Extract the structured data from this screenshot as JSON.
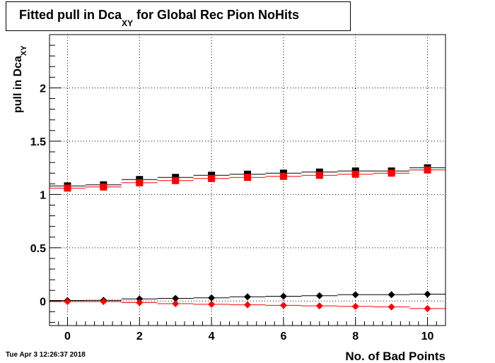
{
  "title": {
    "main": "Fitted pull in Dca",
    "subscript": "XY",
    "rest": " for Global Rec Pion NoHits"
  },
  "timestamp": "Tue Apr  3 12:26:37 2018",
  "chart_data": {
    "type": "scatter",
    "xlabel": "No. of Bad Points",
    "ylabel": "pull in Dca",
    "ylabel_subscript": "XY",
    "xlim": [
      -0.5,
      10.5
    ],
    "ylim": [
      -0.23,
      2.5
    ],
    "x_ticks": [
      0,
      2,
      4,
      6,
      8,
      10
    ],
    "y_ticks": [
      0,
      0.5,
      1,
      1.5,
      2
    ],
    "x_tick_labels": [
      "0",
      "2",
      "4",
      "6",
      "8",
      "10"
    ],
    "y_tick_labels": [
      "0",
      "0.5",
      "1",
      "1.5",
      "2"
    ],
    "grid": true,
    "x": [
      0,
      1,
      2,
      3,
      4,
      5,
      6,
      7,
      8,
      9,
      10
    ],
    "series": [
      {
        "marker": "square",
        "color": "#000000",
        "values": [
          1.08,
          1.09,
          1.14,
          1.16,
          1.18,
          1.19,
          1.2,
          1.21,
          1.22,
          1.22,
          1.25
        ]
      },
      {
        "marker": "square",
        "color": "#ff0000",
        "values": [
          1.06,
          1.07,
          1.11,
          1.13,
          1.15,
          1.16,
          1.17,
          1.18,
          1.19,
          1.2,
          1.23
        ]
      },
      {
        "marker": "diamond",
        "color": "#000000",
        "values": [
          0.005,
          0.007,
          0.02,
          0.025,
          0.03,
          0.04,
          0.045,
          0.05,
          0.06,
          0.06,
          0.065
        ]
      },
      {
        "marker": "diamond",
        "color": "#ff0000",
        "values": [
          -0.005,
          -0.005,
          -0.015,
          -0.025,
          -0.03,
          -0.035,
          -0.04,
          -0.045,
          -0.05,
          -0.055,
          -0.07
        ]
      }
    ]
  }
}
